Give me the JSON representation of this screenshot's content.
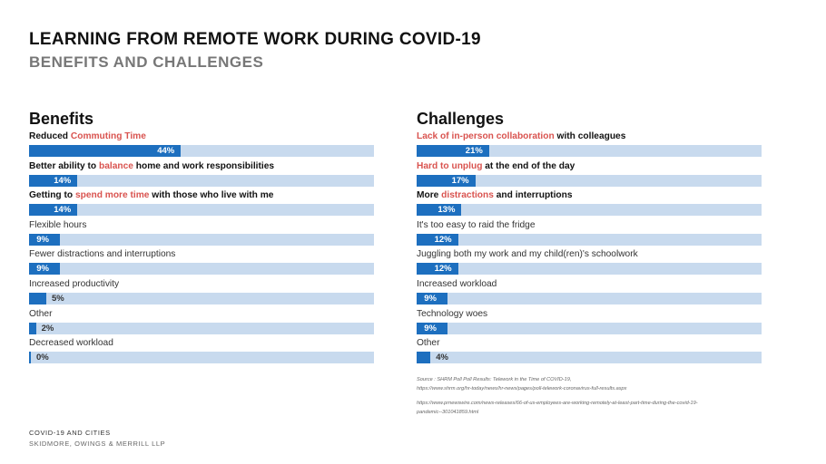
{
  "header": {
    "title": "LEARNING FROM REMOTE WORK DURING COVID-19",
    "subtitle": "BENEFITS AND CHALLENGES"
  },
  "chart_data": [
    {
      "type": "bar",
      "orientation": "horizontal",
      "title": "Benefits",
      "xlim": [
        0,
        100
      ],
      "unit": "%",
      "bar_color": "#1d6fbf",
      "track_color": "#c8daee",
      "highlight_color": "#d9534f",
      "items": [
        {
          "segments": [
            {
              "text": "Reduced "
            },
            {
              "text": "Commuting Time",
              "hl": true
            }
          ],
          "bold": true,
          "value": 44,
          "value_label": "44%"
        },
        {
          "segments": [
            {
              "text": "Better ability to "
            },
            {
              "text": "balance",
              "hl": true
            },
            {
              "text": " home and work responsibilities"
            }
          ],
          "bold": true,
          "value": 14,
          "value_label": "14%"
        },
        {
          "segments": [
            {
              "text": "Getting to "
            },
            {
              "text": "spend more time",
              "hl": true
            },
            {
              "text": " with those who live with me"
            }
          ],
          "bold": true,
          "value": 14,
          "value_label": "14%"
        },
        {
          "segments": [
            {
              "text": "Flexible hours"
            }
          ],
          "bold": false,
          "value": 9,
          "value_label": "9%"
        },
        {
          "segments": [
            {
              "text": "Fewer distractions and interruptions"
            }
          ],
          "bold": false,
          "value": 9,
          "value_label": "9%"
        },
        {
          "segments": [
            {
              "text": "Increased productivity"
            }
          ],
          "bold": false,
          "value": 5,
          "value_label": "5%"
        },
        {
          "segments": [
            {
              "text": "Other"
            }
          ],
          "bold": false,
          "value": 2,
          "value_label": "2%"
        },
        {
          "segments": [
            {
              "text": "Decreased workload"
            }
          ],
          "bold": false,
          "value": 0,
          "value_label": "0%"
        }
      ]
    },
    {
      "type": "bar",
      "orientation": "horizontal",
      "title": "Challenges",
      "xlim": [
        0,
        100
      ],
      "unit": "%",
      "bar_color": "#1d6fbf",
      "track_color": "#c8daee",
      "highlight_color": "#d9534f",
      "items": [
        {
          "segments": [
            {
              "text": "Lack of in-person collaboration",
              "hl": true
            },
            {
              "text": " with colleagues"
            }
          ],
          "bold": true,
          "value": 21,
          "value_label": "21%"
        },
        {
          "segments": [
            {
              "text": "Hard to unplug",
              "hl": true
            },
            {
              "text": " at the end of the day"
            }
          ],
          "bold": true,
          "value": 17,
          "value_label": "17%"
        },
        {
          "segments": [
            {
              "text": "More "
            },
            {
              "text": "distractions",
              "hl": true
            },
            {
              "text": " and interruptions"
            }
          ],
          "bold": true,
          "value": 13,
          "value_label": "13%"
        },
        {
          "segments": [
            {
              "text": "It's too easy to raid the fridge"
            }
          ],
          "bold": false,
          "value": 12,
          "value_label": "12%"
        },
        {
          "segments": [
            {
              "text": "Juggling both my work and my child(ren)'s schoolwork"
            }
          ],
          "bold": false,
          "value": 12,
          "value_label": "12%"
        },
        {
          "segments": [
            {
              "text": "Increased workload"
            }
          ],
          "bold": false,
          "value": 9,
          "value_label": "9%"
        },
        {
          "segments": [
            {
              "text": "Technology woes"
            }
          ],
          "bold": false,
          "value": 9,
          "value_label": "9%"
        },
        {
          "segments": [
            {
              "text": "Other"
            }
          ],
          "bold": false,
          "value": 4,
          "value_label": "4%"
        }
      ]
    }
  ],
  "sources": {
    "line1": "Source : SHRM Poll Poll Results: Telework in the Time of COVID-19,",
    "line2": "https://www.shrm.org/hr-today/news/hr-news/pages/poll-telework-coronavirus-full-results.aspx",
    "line3": "https://www.prnewswire.com/news-releases/66-of-us-employees-are-working-remotely-at-least-part-time-during-the-covid-19-",
    "line4": "pandemic--301041859.html"
  },
  "footer": {
    "line1": "COVID-19 AND CITIES",
    "line2": "SKIDMORE, OWINGS & MERRILL LLP"
  }
}
